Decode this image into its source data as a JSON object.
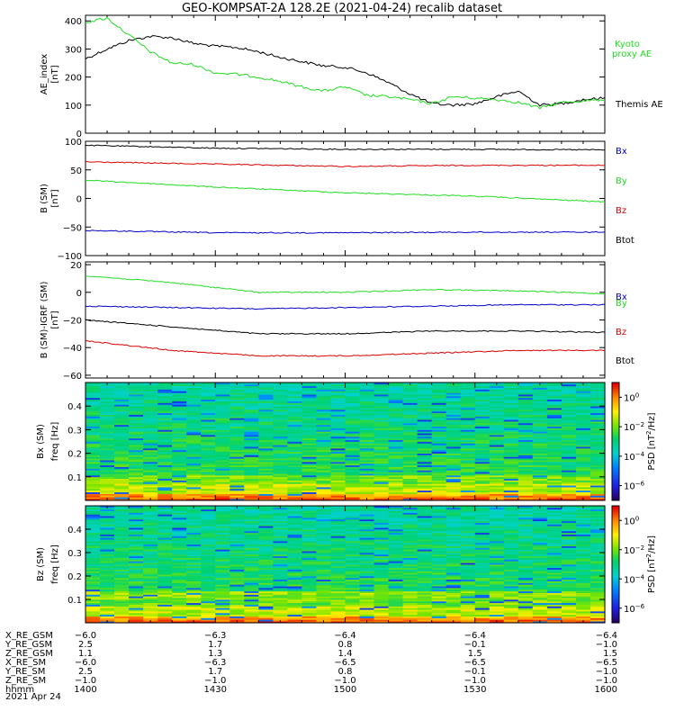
{
  "title": "GEO-KOMPSAT-2A 128.2E (2021-04-24) recalib dataset",
  "date_label": "2021 Apr 24",
  "colors": {
    "black": "#000000",
    "green": "#22dd22",
    "red": "#dd0000",
    "blue": "#0000cc"
  },
  "chart_data": [
    {
      "type": "line",
      "ylabel": "AE_index",
      "yunit": "[nT]",
      "ylim": [
        0,
        420
      ],
      "yticks": [
        0,
        100,
        200,
        300,
        400
      ],
      "x_range": [
        "14:00",
        "16:00"
      ],
      "legend": [
        {
          "name": "Kyoto proxy AE",
          "color_key": "green",
          "lines": [
            "Kyoto",
            "proxy AE"
          ]
        },
        {
          "name": "Themis AE",
          "color_key": "black",
          "lines": [
            "Themis AE"
          ]
        }
      ],
      "series": [
        {
          "name": "Themis AE",
          "color_key": "black",
          "x": [
            0,
            5,
            10,
            15,
            20,
            25,
            30,
            35,
            40,
            45,
            50,
            55,
            60,
            65,
            70,
            75,
            80,
            85,
            90,
            95,
            100,
            105,
            110,
            115,
            120
          ],
          "values": [
            265,
            300,
            330,
            345,
            340,
            320,
            310,
            305,
            290,
            270,
            255,
            240,
            235,
            215,
            180,
            140,
            105,
            100,
            105,
            130,
            150,
            100,
            105,
            120,
            125
          ]
        },
        {
          "name": "Kyoto proxy AE",
          "color_key": "green",
          "x": [
            0,
            5,
            10,
            15,
            20,
            25,
            30,
            35,
            40,
            45,
            50,
            55,
            60,
            65,
            70,
            75,
            80,
            85,
            90,
            95,
            100,
            105,
            110,
            115,
            120
          ],
          "values": [
            395,
            410,
            350,
            290,
            250,
            245,
            215,
            210,
            200,
            185,
            165,
            150,
            165,
            135,
            130,
            120,
            105,
            130,
            125,
            120,
            110,
            90,
            110,
            115,
            120
          ]
        }
      ]
    },
    {
      "type": "line",
      "ylabel": "B (SM)",
      "yunit": "[nT]",
      "ylim": [
        -100,
        100
      ],
      "yticks": [
        -100,
        -50,
        0,
        50,
        100
      ],
      "legend": [
        {
          "name": "Bx",
          "color_key": "blue",
          "lines": [
            "Bx"
          ]
        },
        {
          "name": "By",
          "color_key": "green",
          "lines": [
            "By"
          ]
        },
        {
          "name": "Bz",
          "color_key": "red",
          "lines": [
            "Bz"
          ]
        },
        {
          "name": "Btot",
          "color_key": "black",
          "lines": [
            "Btot"
          ]
        }
      ],
      "series": [
        {
          "name": "Btot",
          "color_key": "black",
          "x": [
            0,
            30,
            60,
            90,
            120
          ],
          "values": [
            93,
            88,
            86,
            86,
            85
          ]
        },
        {
          "name": "Bz",
          "color_key": "red",
          "x": [
            0,
            30,
            60,
            90,
            120
          ],
          "values": [
            64,
            60,
            56,
            58,
            58
          ]
        },
        {
          "name": "By",
          "color_key": "green",
          "x": [
            0,
            30,
            60,
            90,
            120
          ],
          "values": [
            32,
            20,
            10,
            4,
            -6
          ]
        },
        {
          "name": "Bx",
          "color_key": "blue",
          "x": [
            0,
            30,
            60,
            90,
            120
          ],
          "values": [
            -56,
            -60,
            -60,
            -59,
            -59
          ]
        }
      ]
    },
    {
      "type": "line",
      "ylabel": "B (SM)-IGRF (SM)",
      "yunit": "[nT]",
      "ylim": [
        -62,
        22
      ],
      "yticks": [
        -60,
        -40,
        -20,
        0,
        20
      ],
      "legend": [
        {
          "name": "Bx",
          "color_key": "blue",
          "lines": [
            "Bx"
          ]
        },
        {
          "name": "By",
          "color_key": "green",
          "lines": [
            "By"
          ]
        },
        {
          "name": "Bz",
          "color_key": "red",
          "lines": [
            "Bz"
          ]
        },
        {
          "name": "Btot",
          "color_key": "black",
          "lines": [
            "Btot"
          ]
        }
      ],
      "series": [
        {
          "name": "By",
          "color_key": "green",
          "x": [
            0,
            20,
            40,
            60,
            80,
            100,
            120
          ],
          "values": [
            12,
            7,
            0,
            0,
            2,
            1,
            -1
          ]
        },
        {
          "name": "Bx",
          "color_key": "blue",
          "x": [
            0,
            20,
            40,
            60,
            80,
            100,
            120
          ],
          "values": [
            -10,
            -11,
            -12,
            -11,
            -10,
            -9,
            -9
          ]
        },
        {
          "name": "Btot",
          "color_key": "black",
          "x": [
            0,
            20,
            40,
            60,
            80,
            100,
            120
          ],
          "values": [
            -20,
            -25,
            -30,
            -30,
            -28,
            -28,
            -29
          ]
        },
        {
          "name": "Bz",
          "color_key": "red",
          "x": [
            0,
            20,
            40,
            60,
            80,
            100,
            120
          ],
          "values": [
            -35,
            -42,
            -46,
            -46,
            -44,
            -42,
            -42
          ]
        }
      ]
    },
    {
      "type": "heatmap",
      "ylabel": "Bx (SM)",
      "yunit": "freq [Hz]",
      "ylim": [
        0,
        0.5
      ],
      "yticks": [
        0.1,
        0.2,
        0.3,
        0.4
      ],
      "colorbar": {
        "label": "PSD [nT^2/Hz]",
        "ticks": [
          "10^0",
          "10^-2",
          "10^-4",
          "10^-6"
        ],
        "log_range": [
          -7,
          1
        ]
      }
    },
    {
      "type": "heatmap",
      "ylabel": "Bz (SM)",
      "yunit": "freq [Hz]",
      "ylim": [
        0,
        0.5
      ],
      "yticks": [
        0.1,
        0.2,
        0.3,
        0.4
      ],
      "colorbar": {
        "label": "PSD [nT^2/Hz]",
        "ticks": [
          "10^0",
          "10^-2",
          "10^-4",
          "10^-6"
        ],
        "log_range": [
          -7,
          1
        ]
      }
    }
  ],
  "orbit_table": {
    "rows": [
      {
        "label": "X_RE_GSM",
        "values": [
          "-6.0",
          "-6.3",
          "-6.4",
          "-6.4",
          "-6.4"
        ]
      },
      {
        "label": "Y_RE_GSM",
        "values": [
          "2.5",
          "1.7",
          "0.8",
          "-0.1",
          "-1.0"
        ]
      },
      {
        "label": "Z_RE_GSM",
        "values": [
          "1.1",
          "1.3",
          "1.4",
          "1.5",
          "1.5"
        ]
      },
      {
        "label": "X_RE_SM",
        "values": [
          "-6.0",
          "-6.3",
          "-6.5",
          "-6.5",
          "-6.5"
        ]
      },
      {
        "label": "Y_RE_SM",
        "values": [
          "2.5",
          "1.7",
          "0.8",
          "-0.1",
          "-1.0"
        ]
      },
      {
        "label": "Z_RE_SM",
        "values": [
          "-1.0",
          "-1.0",
          "-1.0",
          "-1.0",
          "-1.0"
        ]
      },
      {
        "label": "hhmm",
        "values": [
          "1400",
          "1430",
          "1500",
          "1530",
          "1600"
        ]
      }
    ]
  }
}
